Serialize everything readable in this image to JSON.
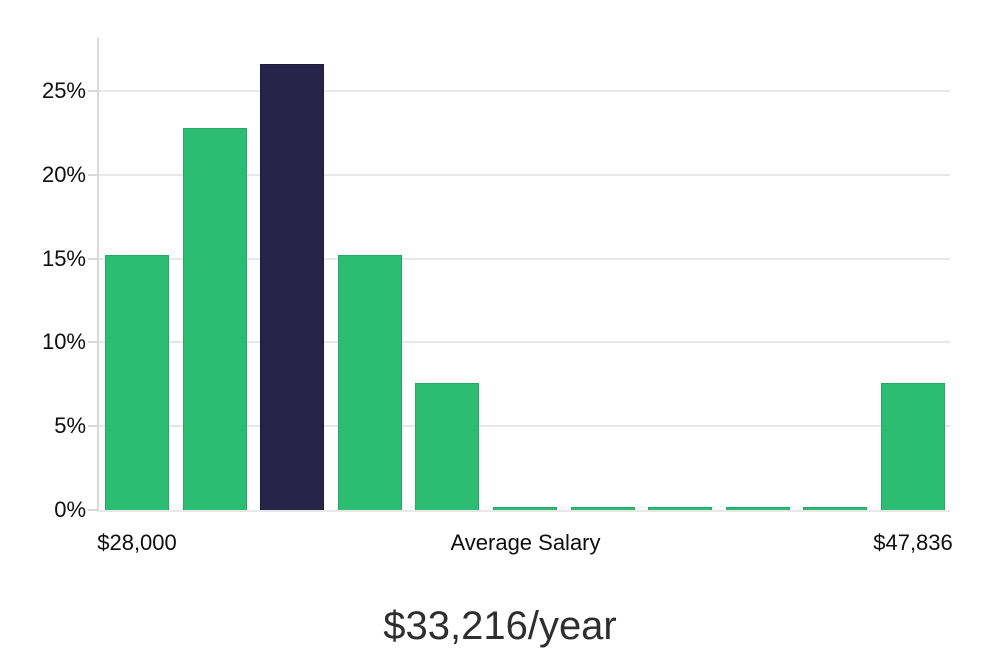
{
  "chart_data": {
    "type": "bar",
    "title": "$33,216/year",
    "values_unit": "%",
    "values": [
      15.2,
      22.8,
      26.6,
      15.2,
      7.6,
      0.15,
      0.15,
      0.15,
      0.15,
      0.15,
      7.6
    ],
    "highlighted_index": 2,
    "y_axis": {
      "ticks": [
        0,
        5,
        10,
        15,
        20,
        25
      ],
      "tick_labels": [
        "0%",
        "5%",
        "10%",
        "15%",
        "20%",
        "25%"
      ],
      "ylim": [
        0,
        28.15
      ],
      "grid": true
    },
    "x_labels": [
      {
        "text": "$28,000",
        "anchor": "bar-0"
      },
      {
        "text": "Average Salary",
        "anchor": "center"
      },
      {
        "text": "$47,836",
        "anchor": "bar-10"
      }
    ],
    "legend": "none",
    "colors": {
      "bar": "#2cbd72",
      "bar_border": "#26a866",
      "highlight": "#282449",
      "highlight_border": "#1e1b38",
      "grid": "#e8e8e8",
      "axis_line": "#d9d9d9",
      "tick_text": "#0f0f0f",
      "title_text": "#2e2e2e"
    }
  }
}
